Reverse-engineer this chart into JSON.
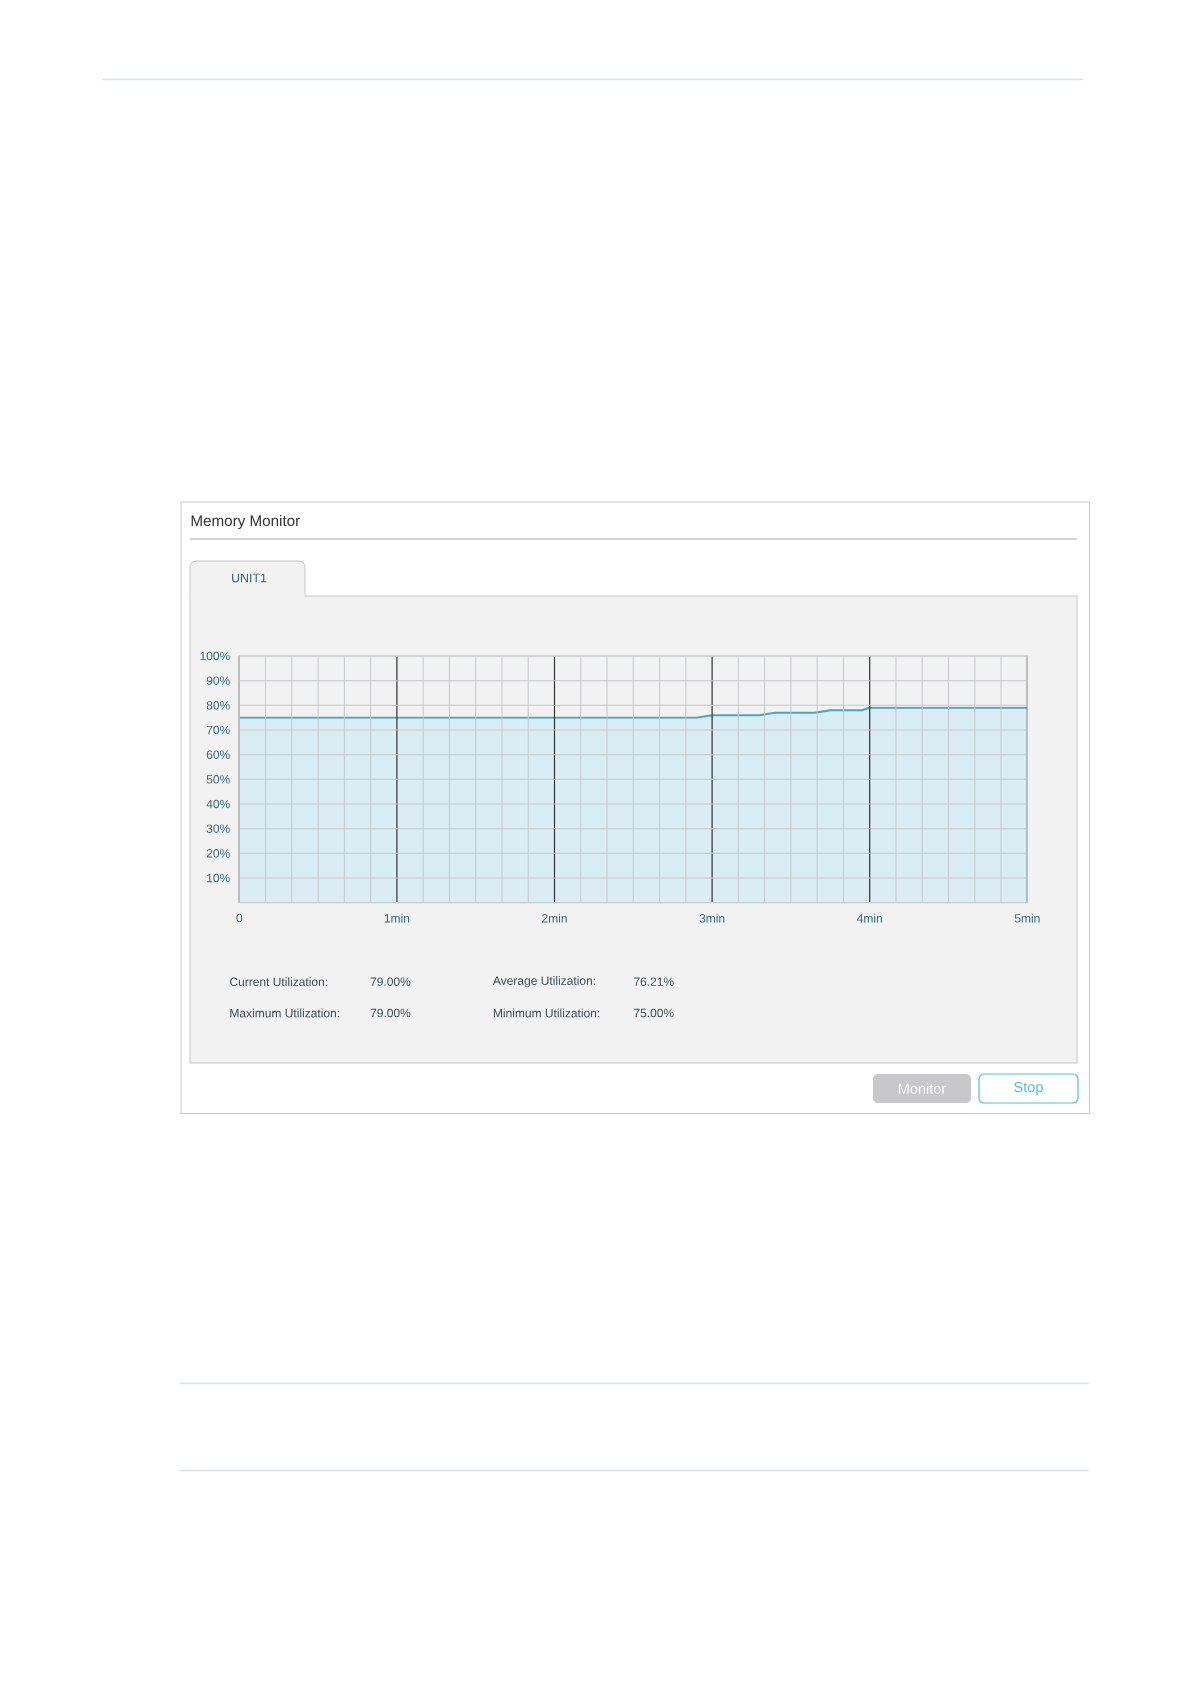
{
  "chart_data": {
    "type": "area",
    "title": "Memory Monitor",
    "subtitle": "UNIT1",
    "x": [
      0,
      2.9,
      3.0,
      3.3,
      3.4,
      3.65,
      3.75,
      3.95,
      4.0,
      5
    ],
    "values": [
      75,
      75,
      76,
      76,
      77,
      77,
      78,
      78,
      79,
      79
    ],
    "color": "#44a6c9",
    "xlim": [
      0,
      5
    ],
    "xticks": [
      0,
      {
        "value": 1,
        "label": "1min"
      },
      {
        "value": 2,
        "label": "2min"
      },
      {
        "value": 3,
        "label": "3min"
      },
      {
        "value": 4,
        "label": "4min"
      },
      {
        "value": 5,
        "label": "5min"
      }
    ],
    "ylim": [
      0,
      100
    ],
    "yticks": [
      {
        "value": 10,
        "label": "10%"
      },
      {
        "value": 20,
        "label": "20%"
      },
      {
        "value": 30,
        "label": "30%"
      },
      {
        "value": 40,
        "label": "40%"
      },
      {
        "value": 50,
        "label": "50%"
      },
      {
        "value": 60,
        "label": "60%"
      },
      {
        "value": 70,
        "label": "70%"
      },
      {
        "value": 80,
        "label": "80%"
      },
      {
        "value": 90,
        "label": "90%"
      },
      {
        "value": 100,
        "label": "100%"
      }
    ],
    "grid": true,
    "annotations": [
      "Current Utilization:",
      "79.00%",
      "Average Utilization:",
      "76.21%",
      "Maximum Utilization:",
      "79.00%",
      "Minimum Utilization:",
      "75.00%",
      "Monitor",
      "Stop"
    ]
  }
}
